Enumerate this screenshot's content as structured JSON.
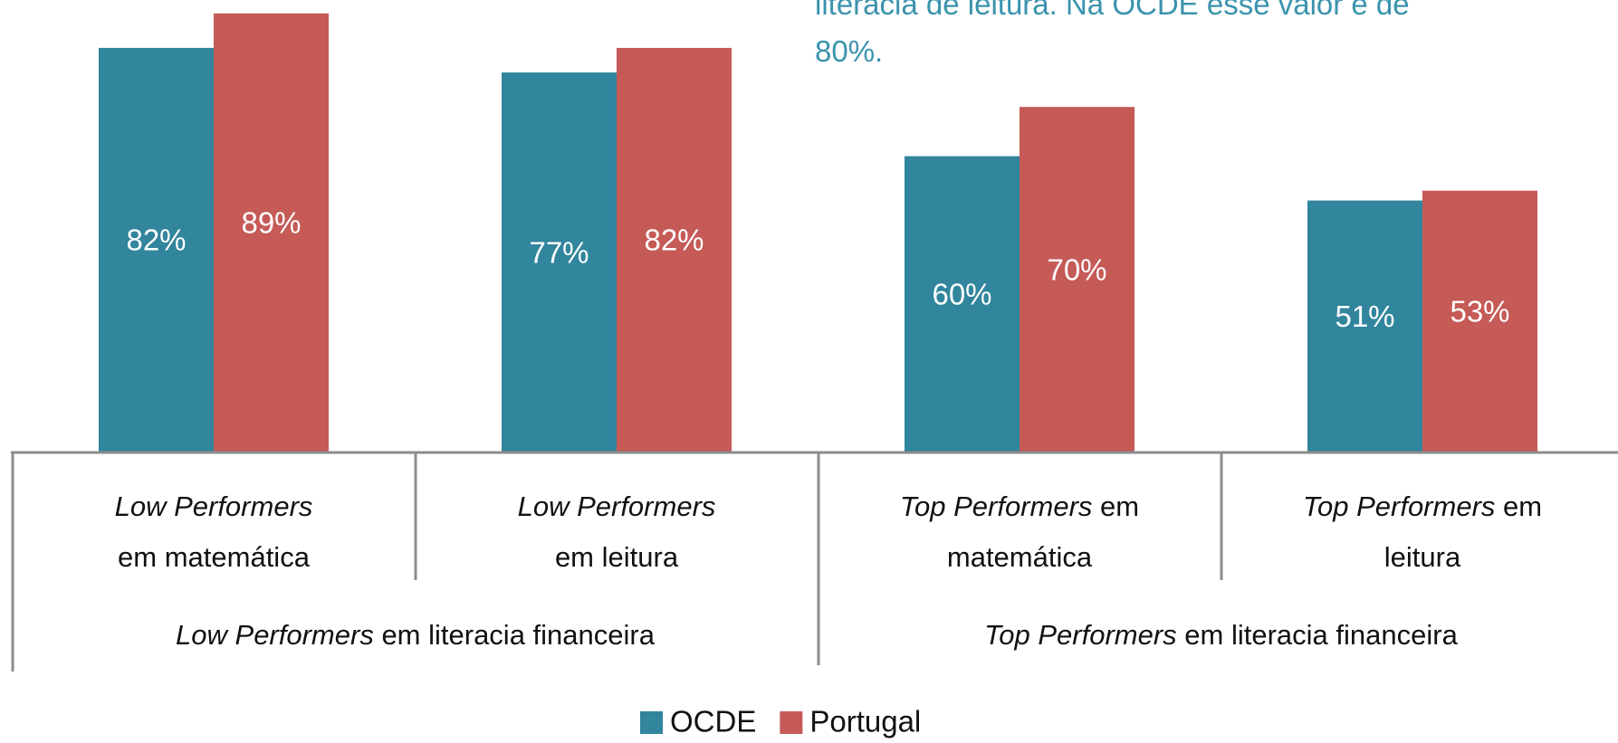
{
  "chart_data": {
    "type": "bar",
    "annotation": [
      "literacia de leitura. Na OCDE esse valor é de",
      "80%."
    ],
    "categories": [
      [
        [
          {
            "text": "Low Performers",
            "italic": true
          }
        ],
        [
          {
            "text": "em matemática",
            "italic": false
          }
        ]
      ],
      [
        [
          {
            "text": "Low Performers",
            "italic": true
          }
        ],
        [
          {
            "text": "em leitura",
            "italic": false
          }
        ]
      ],
      [
        [
          {
            "text": "Top Performers",
            "italic": true
          },
          {
            "text": " em",
            "italic": false
          }
        ],
        [
          {
            "text": "matemática",
            "italic": false
          }
        ]
      ],
      [
        [
          {
            "text": "Top Performers",
            "italic": true
          },
          {
            "text": " em",
            "italic": false
          }
        ],
        [
          {
            "text": "leitura",
            "italic": false
          }
        ]
      ]
    ],
    "groups": [
      [
        {
          "text": "Low Performers",
          "italic": true
        },
        {
          "text": " em literacia financeira",
          "italic": false
        }
      ],
      [
        {
          "text": "Top Performers",
          "italic": true
        },
        {
          "text": " em literacia financeira",
          "italic": false
        }
      ]
    ],
    "series": [
      {
        "name": "OCDE",
        "color": "#31859c",
        "values": [
          82,
          77,
          60,
          51
        ],
        "value_labels": [
          "82%",
          "77%",
          "60%",
          "51%"
        ]
      },
      {
        "name": "Portugal",
        "color": "#c55a57",
        "values": [
          89,
          82,
          70,
          53
        ],
        "value_labels": [
          "89%",
          "82%",
          "70%",
          "53%"
        ]
      }
    ]
  }
}
